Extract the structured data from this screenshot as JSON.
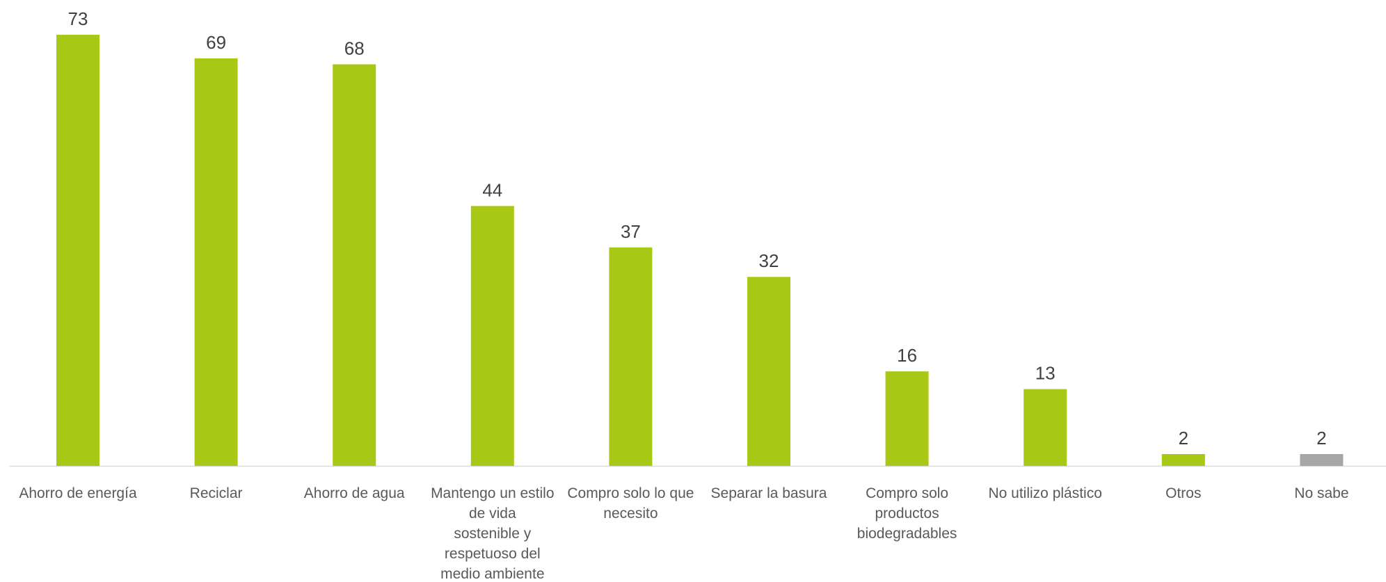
{
  "chart_data": {
    "type": "bar",
    "categories": [
      [
        "Ahorro de energía"
      ],
      [
        "Reciclar"
      ],
      [
        "Ahorro de agua"
      ],
      [
        "Mantengo un estilo",
        "de vida",
        "sostenible y",
        "respetuoso del",
        "medio ambiente"
      ],
      [
        "Compro solo lo que",
        "necesito"
      ],
      [
        "Separar la basura"
      ],
      [
        "Compro solo",
        "productos",
        "biodegradables"
      ],
      [
        "No utilizo plástico"
      ],
      [
        "Otros"
      ],
      [
        "No sabe"
      ]
    ],
    "values": [
      73,
      69,
      68,
      44,
      37,
      32,
      16,
      13,
      2,
      2
    ],
    "bar_colors": [
      "#a7c815",
      "#a7c815",
      "#a7c815",
      "#a7c815",
      "#a7c815",
      "#a7c815",
      "#a7c815",
      "#a7c815",
      "#a7c815",
      "#a6a6a6"
    ],
    "ylim": [
      0,
      73
    ],
    "grid": false,
    "legend": "none",
    "axis_color": "#d9d9d9"
  }
}
